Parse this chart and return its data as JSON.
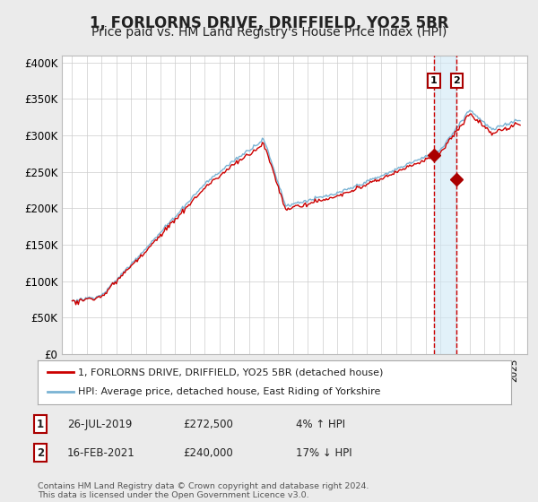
{
  "title": "1, FORLORNS DRIVE, DRIFFIELD, YO25 5BR",
  "subtitle": "Price paid vs. HM Land Registry's House Price Index (HPI)",
  "title_fontsize": 12,
  "subtitle_fontsize": 10,
  "ylabel_ticks": [
    "£0",
    "£50K",
    "£100K",
    "£150K",
    "£200K",
    "£250K",
    "£300K",
    "£350K",
    "£400K"
  ],
  "ytick_values": [
    0,
    50000,
    100000,
    150000,
    200000,
    250000,
    300000,
    350000,
    400000
  ],
  "ylim": [
    0,
    410000
  ],
  "hpi_color": "#7ab3d4",
  "price_color": "#cc0000",
  "vline_color": "#cc0000",
  "shade_color": "#d0e8f5",
  "marker_color": "#aa0000",
  "legend_label_1": "1, FORLORNS DRIVE, DRIFFIELD, YO25 5BR (detached house)",
  "legend_label_2": "HPI: Average price, detached house, East Riding of Yorkshire",
  "annotation_1_date": "26-JUL-2019",
  "annotation_1_price": "£272,500",
  "annotation_1_hpi": "4% ↑ HPI",
  "annotation_1_year": 2019.57,
  "annotation_1_value": 272500,
  "annotation_2_date": "16-FEB-2021",
  "annotation_2_price": "£240,000",
  "annotation_2_hpi": "17% ↓ HPI",
  "annotation_2_year": 2021.12,
  "annotation_2_value": 240000,
  "footer": "Contains HM Land Registry data © Crown copyright and database right 2024.\nThis data is licensed under the Open Government Licence v3.0.",
  "background_color": "#ebebeb",
  "plot_bg_color": "#ffffff",
  "grid_color": "#cccccc",
  "box_edge_color": "#aa0000"
}
